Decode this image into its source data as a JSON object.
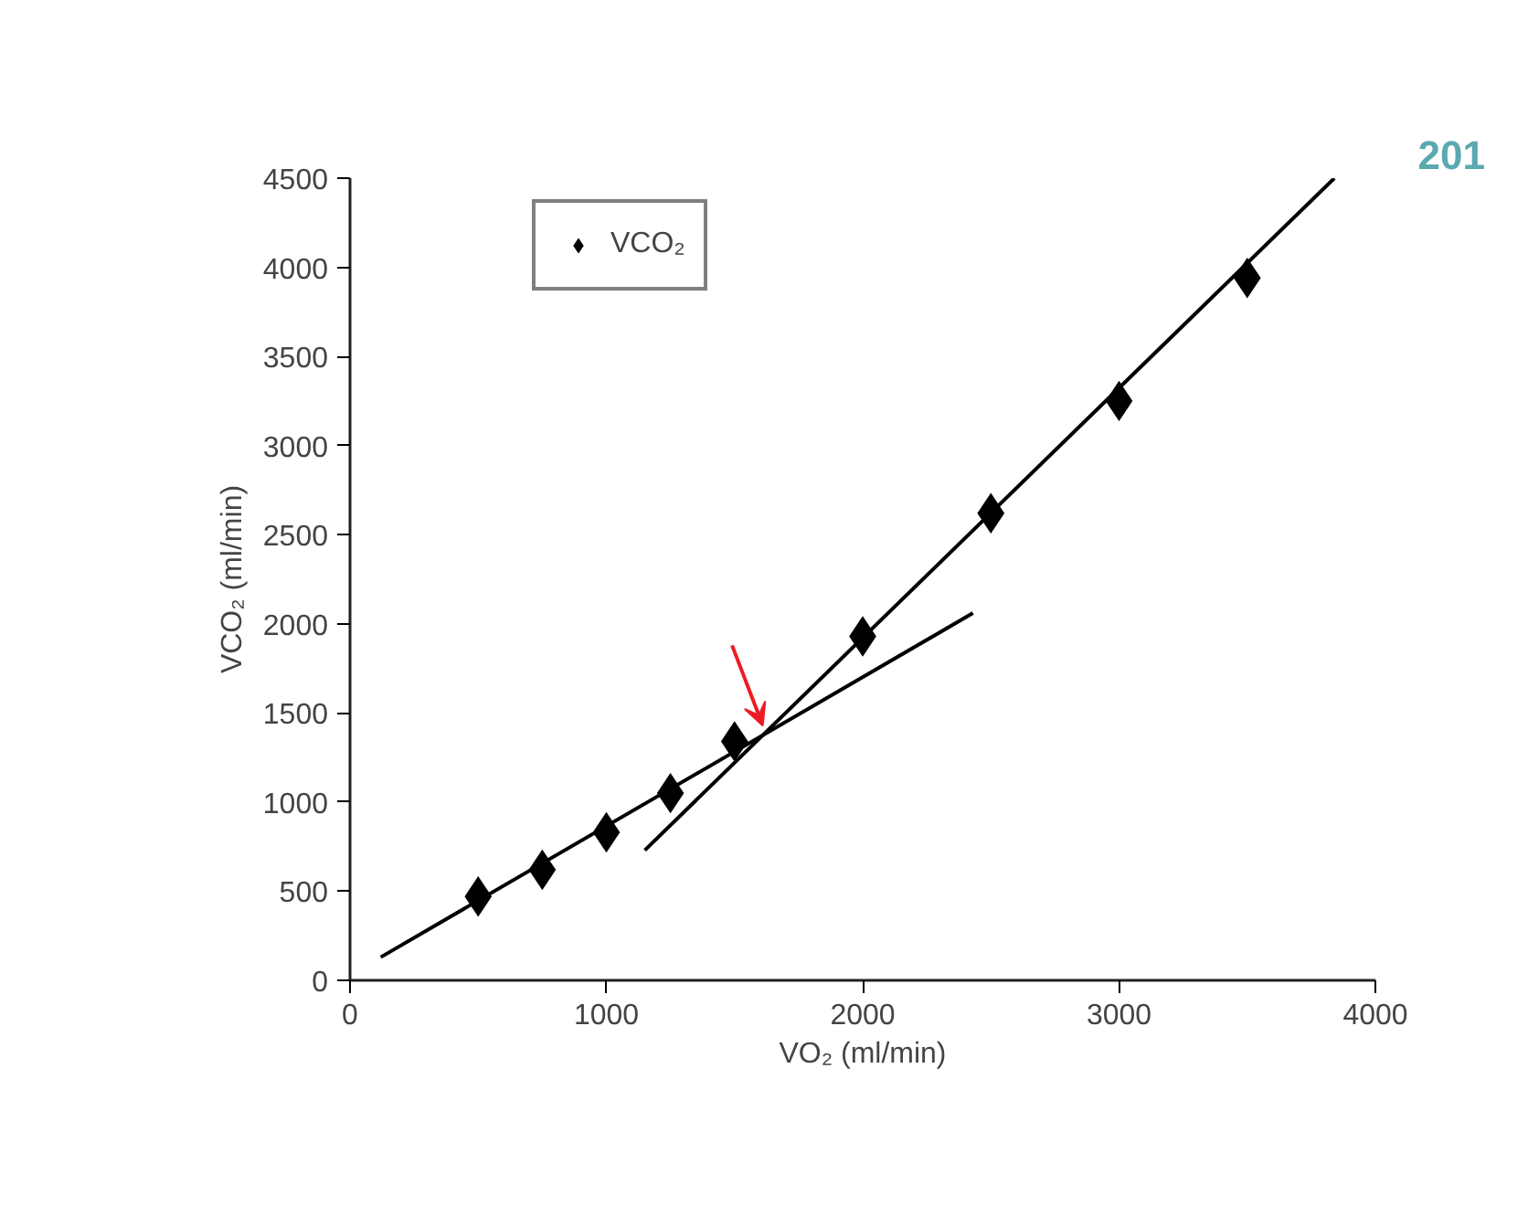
{
  "chart_data": {
    "type": "scatter",
    "xlabel": "VO₂ (ml/min)",
    "ylabel": "VCO₂ (ml/min)",
    "x": [
      500,
      750,
      1000,
      1250,
      1500,
      2000,
      2500,
      3000,
      3500
    ],
    "series": [
      {
        "name": "VCO₂",
        "color": "#000000",
        "marker": "diamond",
        "values": [
          470,
          620,
          830,
          1050,
          1340,
          1930,
          2620,
          3250,
          3940
        ]
      },
      {
        "type": "line",
        "color": "#000000",
        "line_style": "solid",
        "x": [
          120,
          2430
        ],
        "values": [
          130,
          2060
        ]
      },
      {
        "type": "line",
        "color": "#000000",
        "line_style": "solid",
        "x": [
          1150,
          3840
        ],
        "values": [
          730,
          4500
        ]
      }
    ],
    "xlim": [
      0,
      4000
    ],
    "ylim": [
      0,
      4500
    ],
    "xticks": [
      0,
      1000,
      2000,
      3000,
      4000
    ],
    "yticks": [
      0,
      500,
      1000,
      1500,
      2000,
      2500,
      3000,
      3500,
      4000,
      4500
    ],
    "grid": false,
    "legend": "top left",
    "annotations": [
      "201"
    ]
  }
}
